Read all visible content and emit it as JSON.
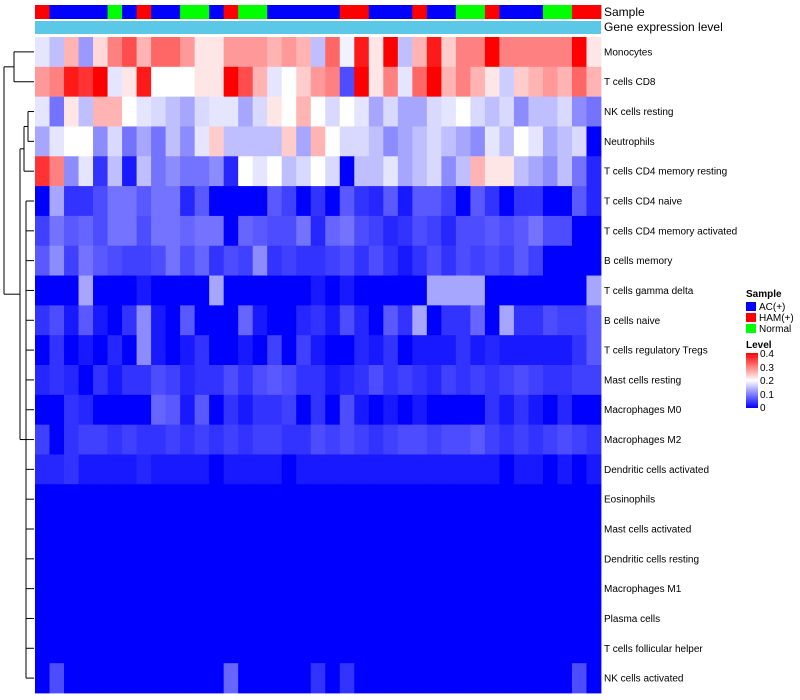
{
  "chart_data": {
    "type": "heatmap",
    "title": "",
    "annotation_rows": [
      {
        "label": "Sample",
        "kind": "categorical"
      },
      {
        "label": "Gene expression level",
        "kind": "constant"
      }
    ],
    "sample_groups": [
      "HAM(+)",
      "AC(+)",
      "AC(+)",
      "AC(+)",
      "AC(+)",
      "Normal",
      "AC(+)",
      "HAM(+)",
      "AC(+)",
      "AC(+)",
      "Normal",
      "Normal",
      "AC(+)",
      "HAM(+)",
      "Normal",
      "Normal",
      "AC(+)",
      "AC(+)",
      "AC(+)",
      "AC(+)",
      "AC(+)",
      "HAM(+)",
      "HAM(+)",
      "AC(+)",
      "AC(+)",
      "AC(+)",
      "HAM(+)",
      "AC(+)",
      "AC(+)",
      "Normal",
      "Normal",
      "HAM(+)",
      "AC(+)",
      "AC(+)",
      "AC(+)",
      "Normal",
      "Normal",
      "HAM(+)",
      "HAM(+)"
    ],
    "rows": [
      "Monocytes",
      "T cells CD8",
      "NK cells resting",
      "Neutrophils",
      "T cells CD4 memory resting",
      "T cells CD4 naive",
      "T cells CD4 memory activated",
      "B cells memory",
      "T cells gamma delta",
      "B cells naive",
      "T cells regulatory  Tregs",
      "Mast cells resting",
      "Macrophages M0",
      "Macrophages M2",
      "Dendritic cells activated",
      "Eosinophils",
      "Mast cells activated",
      "Dendritic cells resting",
      "Macrophages M1",
      "Plasma cells",
      "T cells follicular helper",
      "NK cells activated"
    ],
    "values": [
      [
        0.18,
        0.15,
        0.26,
        0.12,
        0.23,
        0.3,
        0.34,
        0.26,
        0.32,
        0.32,
        0.28,
        0.22,
        0.22,
        0.28,
        0.28,
        0.28,
        0.26,
        0.28,
        0.26,
        0.15,
        0.32,
        0.19,
        0.38,
        0.22,
        0.4,
        0.15,
        0.26,
        0.38,
        0.24,
        0.3,
        0.3,
        0.4,
        0.3,
        0.3,
        0.3,
        0.3,
        0.3,
        0.4,
        0.22
      ],
      [
        0.28,
        0.3,
        0.38,
        0.36,
        0.4,
        0.18,
        0.22,
        0.38,
        0.2,
        0.2,
        0.2,
        0.22,
        0.22,
        0.4,
        0.34,
        0.26,
        0.18,
        0.2,
        0.24,
        0.28,
        0.3,
        0.06,
        0.4,
        0.22,
        0.3,
        0.18,
        0.32,
        0.4,
        0.26,
        0.3,
        0.26,
        0.22,
        0.16,
        0.24,
        0.26,
        0.28,
        0.26,
        0.32,
        0.26
      ],
      [
        0.18,
        0.09,
        0.22,
        0.15,
        0.26,
        0.26,
        0.2,
        0.18,
        0.17,
        0.15,
        0.13,
        0.17,
        0.18,
        0.18,
        0.13,
        0.17,
        0.22,
        0.2,
        0.26,
        0.2,
        0.17,
        0.2,
        0.18,
        0.13,
        0.17,
        0.13,
        0.13,
        0.17,
        0.18,
        0.2,
        0.17,
        0.15,
        0.17,
        0.11,
        0.15,
        0.15,
        0.17,
        0.11,
        0.09
      ],
      [
        0.13,
        0.18,
        0.2,
        0.2,
        0.11,
        0.17,
        0.09,
        0.13,
        0.09,
        0.15,
        0.11,
        0.18,
        0.24,
        0.15,
        0.15,
        0.15,
        0.15,
        0.24,
        0.13,
        0.26,
        0.2,
        0.17,
        0.17,
        0.15,
        0.11,
        0.13,
        0.15,
        0.17,
        0.15,
        0.13,
        0.11,
        0.18,
        0.15,
        0.2,
        0.18,
        0.13,
        0.15,
        0.17,
        0.0
      ],
      [
        0.36,
        0.3,
        0.11,
        0.18,
        0.04,
        0.15,
        0.02,
        0.15,
        0.09,
        0.11,
        0.09,
        0.09,
        0.11,
        0.03,
        0.2,
        0.18,
        0.2,
        0.15,
        0.17,
        0.2,
        0.17,
        0.0,
        0.15,
        0.15,
        0.18,
        0.13,
        0.15,
        0.17,
        0.11,
        0.15,
        0.26,
        0.22,
        0.22,
        0.15,
        0.13,
        0.11,
        0.15,
        0.09,
        0.03
      ],
      [
        0.0,
        0.13,
        0.04,
        0.04,
        0.06,
        0.09,
        0.09,
        0.07,
        0.09,
        0.09,
        0.03,
        0.07,
        0.0,
        0.0,
        0.0,
        0.0,
        0.07,
        0.05,
        0.0,
        0.04,
        0.0,
        0.07,
        0.04,
        0.03,
        0.07,
        0.02,
        0.07,
        0.07,
        0.05,
        0.0,
        0.07,
        0.04,
        0.0,
        0.04,
        0.04,
        0.0,
        0.0,
        0.07,
        0.03
      ],
      [
        0.05,
        0.09,
        0.07,
        0.08,
        0.06,
        0.09,
        0.09,
        0.06,
        0.09,
        0.09,
        0.08,
        0.09,
        0.09,
        0.0,
        0.08,
        0.07,
        0.06,
        0.06,
        0.09,
        0.03,
        0.08,
        0.09,
        0.06,
        0.05,
        0.03,
        0.04,
        0.06,
        0.05,
        0.03,
        0.06,
        0.06,
        0.07,
        0.06,
        0.07,
        0.09,
        0.06,
        0.06,
        0.0,
        0.0
      ],
      [
        0.07,
        0.11,
        0.05,
        0.09,
        0.07,
        0.06,
        0.05,
        0.05,
        0.06,
        0.09,
        0.06,
        0.08,
        0.04,
        0.06,
        0.05,
        0.11,
        0.04,
        0.05,
        0.04,
        0.04,
        0.05,
        0.06,
        0.04,
        0.06,
        0.04,
        0.02,
        0.04,
        0.06,
        0.04,
        0.06,
        0.05,
        0.06,
        0.05,
        0.07,
        0.05,
        0.0,
        0.0,
        0.0,
        0.0
      ],
      [
        0.0,
        0.0,
        0.0,
        0.13,
        0.0,
        0.0,
        0.0,
        0.02,
        0.0,
        0.0,
        0.0,
        0.0,
        0.13,
        0.0,
        0.0,
        0.0,
        0.0,
        0.0,
        0.0,
        0.02,
        0.0,
        0.02,
        0.0,
        0.0,
        0.0,
        0.0,
        0.0,
        0.13,
        0.13,
        0.13,
        0.13,
        0.0,
        0.0,
        0.0,
        0.0,
        0.0,
        0.0,
        0.0,
        0.13
      ],
      [
        0.04,
        0.06,
        0.02,
        0.07,
        0.02,
        0.0,
        0.04,
        0.11,
        0.02,
        0.0,
        0.07,
        0.0,
        0.0,
        0.0,
        0.08,
        0.02,
        0.0,
        0.0,
        0.03,
        0.04,
        0.02,
        0.06,
        0.03,
        0.0,
        0.07,
        0.04,
        0.13,
        0.0,
        0.04,
        0.04,
        0.08,
        0.0,
        0.13,
        0.04,
        0.04,
        0.06,
        0.05,
        0.05,
        0.07
      ],
      [
        0.0,
        0.04,
        0.0,
        0.02,
        0.0,
        0.03,
        0.0,
        0.11,
        0.02,
        0.0,
        0.02,
        0.04,
        0.0,
        0.0,
        0.02,
        0.0,
        0.05,
        0.0,
        0.05,
        0.02,
        0.0,
        0.0,
        0.03,
        0.02,
        0.04,
        0.0,
        0.02,
        0.02,
        0.02,
        0.04,
        0.02,
        0.03,
        0.02,
        0.02,
        0.02,
        0.02,
        0.02,
        0.04,
        0.07
      ],
      [
        0.03,
        0.04,
        0.03,
        0.0,
        0.04,
        0.02,
        0.04,
        0.04,
        0.06,
        0.05,
        0.03,
        0.04,
        0.04,
        0.06,
        0.04,
        0.06,
        0.07,
        0.06,
        0.04,
        0.04,
        0.02,
        0.03,
        0.04,
        0.06,
        0.04,
        0.05,
        0.04,
        0.03,
        0.05,
        0.04,
        0.05,
        0.04,
        0.05,
        0.06,
        0.05,
        0.04,
        0.04,
        0.05,
        0.05
      ],
      [
        0.0,
        0.0,
        0.04,
        0.03,
        0.0,
        0.0,
        0.0,
        0.0,
        0.08,
        0.07,
        0.02,
        0.07,
        0.0,
        0.04,
        0.02,
        0.04,
        0.04,
        0.05,
        0.0,
        0.04,
        0.0,
        0.06,
        0.02,
        0.0,
        0.02,
        0.0,
        0.02,
        0.0,
        0.0,
        0.0,
        0.0,
        0.04,
        0.02,
        0.04,
        0.02,
        0.0,
        0.03,
        0.0,
        0.0
      ],
      [
        0.05,
        0.0,
        0.04,
        0.05,
        0.05,
        0.04,
        0.05,
        0.04,
        0.04,
        0.05,
        0.04,
        0.05,
        0.04,
        0.05,
        0.04,
        0.05,
        0.05,
        0.04,
        0.04,
        0.06,
        0.05,
        0.06,
        0.05,
        0.04,
        0.05,
        0.06,
        0.06,
        0.05,
        0.06,
        0.06,
        0.07,
        0.05,
        0.04,
        0.05,
        0.04,
        0.05,
        0.06,
        0.05,
        0.04
      ],
      [
        0.03,
        0.03,
        0.04,
        0.02,
        0.02,
        0.02,
        0.02,
        0.03,
        0.02,
        0.02,
        0.02,
        0.02,
        0.0,
        0.02,
        0.02,
        0.02,
        0.02,
        0.0,
        0.02,
        0.02,
        0.02,
        0.02,
        0.02,
        0.02,
        0.02,
        0.02,
        0.02,
        0.02,
        0.02,
        0.02,
        0.02,
        0.02,
        0.0,
        0.02,
        0.02,
        0.0,
        0.02,
        0.0,
        0.02
      ],
      [
        0.0,
        0.0,
        0.0,
        0.0,
        0.0,
        0.0,
        0.0,
        0.0,
        0.0,
        0.0,
        0.0,
        0.0,
        0.0,
        0.0,
        0.0,
        0.0,
        0.0,
        0.0,
        0.0,
        0.0,
        0.0,
        0.0,
        0.0,
        0.0,
        0.0,
        0.0,
        0.0,
        0.0,
        0.0,
        0.0,
        0.0,
        0.0,
        0.0,
        0.0,
        0.0,
        0.0,
        0.0,
        0.0,
        0.0
      ],
      [
        0.0,
        0.0,
        0.0,
        0.0,
        0.0,
        0.0,
        0.0,
        0.0,
        0.0,
        0.0,
        0.0,
        0.0,
        0.0,
        0.0,
        0.0,
        0.0,
        0.0,
        0.0,
        0.0,
        0.0,
        0.0,
        0.0,
        0.0,
        0.0,
        0.0,
        0.0,
        0.0,
        0.0,
        0.0,
        0.0,
        0.0,
        0.0,
        0.0,
        0.0,
        0.0,
        0.0,
        0.0,
        0.0,
        0.0
      ],
      [
        0.0,
        0.0,
        0.0,
        0.0,
        0.0,
        0.0,
        0.0,
        0.0,
        0.0,
        0.0,
        0.0,
        0.0,
        0.0,
        0.0,
        0.0,
        0.0,
        0.0,
        0.0,
        0.0,
        0.0,
        0.0,
        0.0,
        0.0,
        0.0,
        0.0,
        0.0,
        0.0,
        0.0,
        0.0,
        0.0,
        0.0,
        0.0,
        0.0,
        0.0,
        0.0,
        0.0,
        0.0,
        0.0,
        0.0
      ],
      [
        0.0,
        0.0,
        0.0,
        0.0,
        0.0,
        0.0,
        0.0,
        0.0,
        0.0,
        0.0,
        0.0,
        0.0,
        0.0,
        0.0,
        0.0,
        0.0,
        0.0,
        0.0,
        0.0,
        0.0,
        0.0,
        0.0,
        0.0,
        0.0,
        0.0,
        0.0,
        0.0,
        0.0,
        0.0,
        0.0,
        0.0,
        0.0,
        0.0,
        0.0,
        0.0,
        0.0,
        0.0,
        0.0,
        0.0
      ],
      [
        0.0,
        0.0,
        0.0,
        0.0,
        0.0,
        0.0,
        0.0,
        0.0,
        0.0,
        0.0,
        0.0,
        0.0,
        0.0,
        0.0,
        0.0,
        0.0,
        0.0,
        0.0,
        0.0,
        0.0,
        0.0,
        0.0,
        0.0,
        0.0,
        0.0,
        0.0,
        0.0,
        0.0,
        0.0,
        0.0,
        0.0,
        0.0,
        0.0,
        0.0,
        0.0,
        0.0,
        0.0,
        0.0,
        0.0
      ],
      [
        0.0,
        0.0,
        0.0,
        0.0,
        0.0,
        0.0,
        0.0,
        0.0,
        0.0,
        0.0,
        0.0,
        0.0,
        0.0,
        0.0,
        0.0,
        0.0,
        0.0,
        0.0,
        0.0,
        0.0,
        0.0,
        0.0,
        0.0,
        0.0,
        0.0,
        0.0,
        0.0,
        0.0,
        0.0,
        0.0,
        0.0,
        0.0,
        0.0,
        0.0,
        0.0,
        0.0,
        0.0,
        0.0,
        0.0
      ],
      [
        0.0,
        0.06,
        0.0,
        0.0,
        0.0,
        0.0,
        0.0,
        0.0,
        0.0,
        0.0,
        0.0,
        0.0,
        0.0,
        0.08,
        0.0,
        0.0,
        0.0,
        0.0,
        0.0,
        0.04,
        0.0,
        0.04,
        0.0,
        0.0,
        0.0,
        0.0,
        0.0,
        0.0,
        0.0,
        0.0,
        0.0,
        0.0,
        0.0,
        0.0,
        0.0,
        0.0,
        0.0,
        0.06,
        0.0
      ]
    ],
    "color_scale": {
      "min": 0,
      "mid": 0.2,
      "max": 0.4,
      "low": "#0000ff",
      "midColor": "#ffffff",
      "high": "#ff0000"
    },
    "legend": {
      "position": "right",
      "sample_title": "Sample",
      "sample_entries": [
        {
          "label": "AC(+)",
          "color": "#0000ff"
        },
        {
          "label": "HAM(+)",
          "color": "#ff0000"
        },
        {
          "label": "Normal",
          "color": "#00ff00"
        }
      ],
      "level_title": "Level",
      "level_ticks": [
        "0.4",
        "0.3",
        "0.2",
        "0.1",
        "0"
      ]
    },
    "gene_expression_color": "#5bc8e8"
  }
}
